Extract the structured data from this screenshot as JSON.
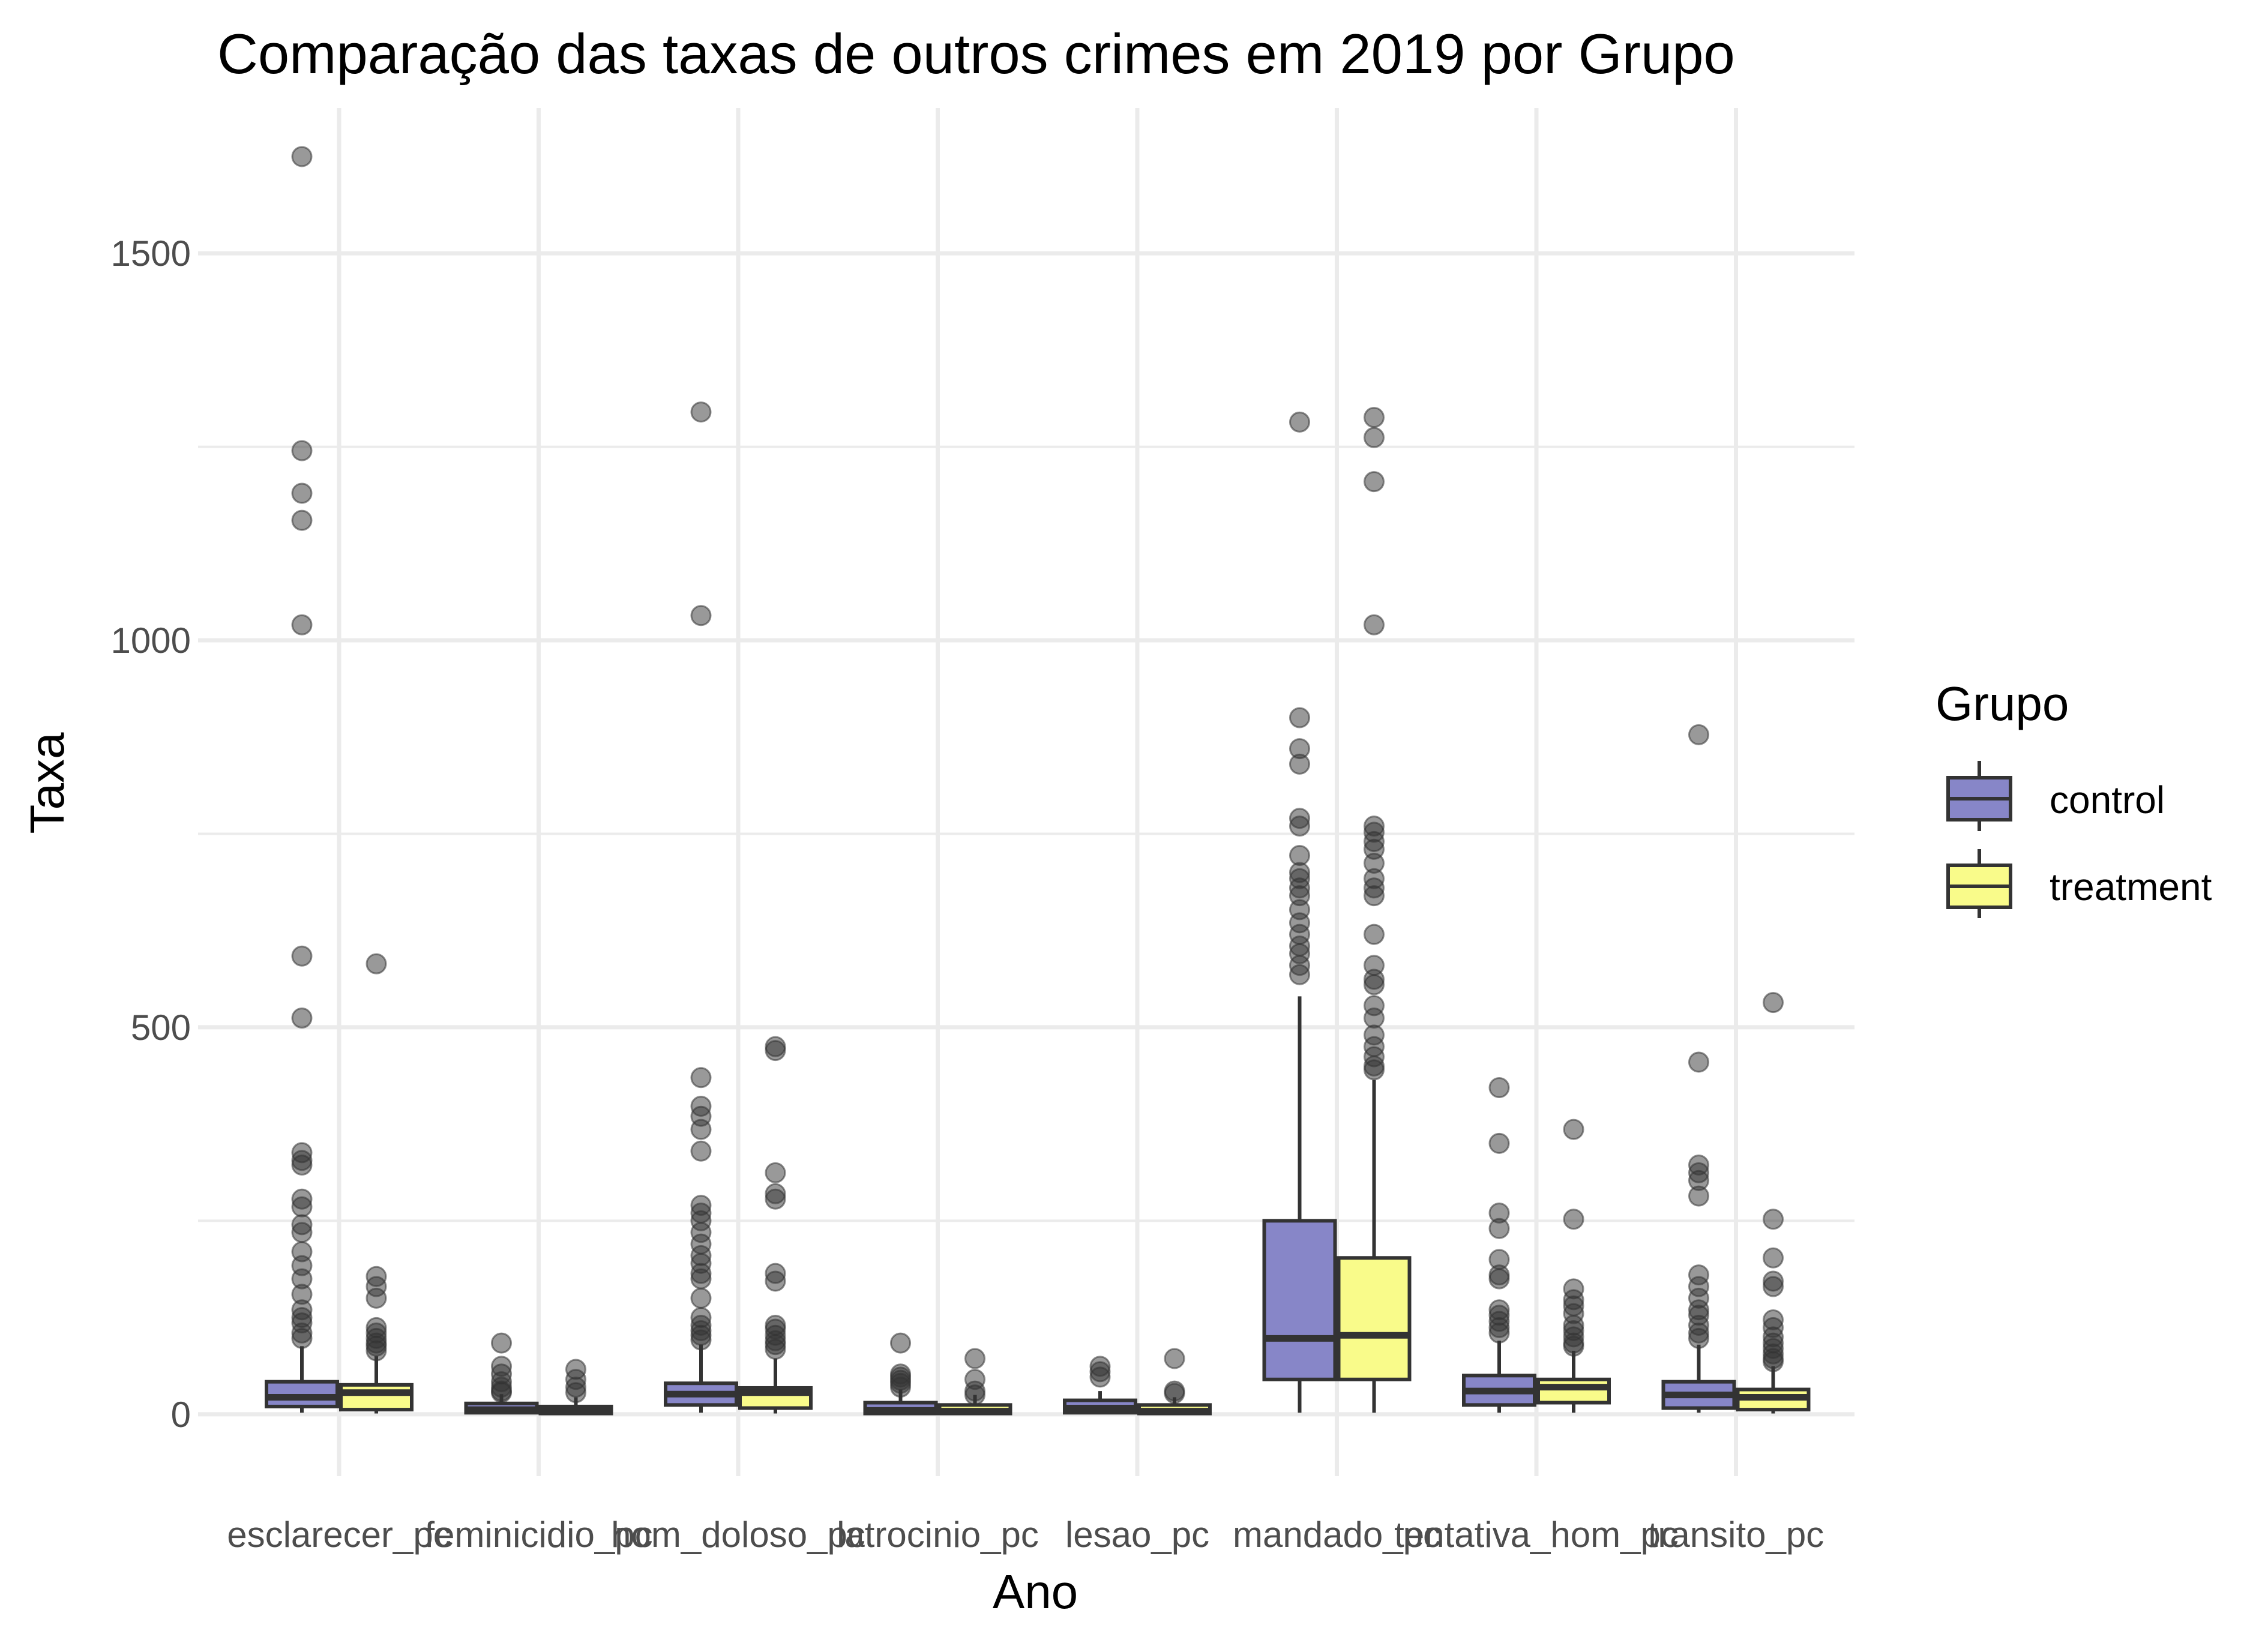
{
  "chart_data": {
    "type": "boxplot",
    "title": "Comparação das taxas de outros crimes em 2019 por Grupo",
    "xlabel": "Ano",
    "ylabel": "Taxa",
    "ylim": [
      -80,
      1680
    ],
    "yticks": [
      0,
      500,
      1000,
      1500
    ],
    "grid": true,
    "legend": {
      "title": "Grupo",
      "position": "right"
    },
    "categories": [
      "esclarecer_pc",
      "feminicidio_pc",
      "hom_doloso_pc",
      "latrocinio_pc",
      "lesao_pc",
      "mandado_pc",
      "tentativa_hom_pc",
      "transito_pc"
    ],
    "series": [
      {
        "name": "control",
        "color": "#8786c8",
        "boxes": [
          {
            "q1": 10,
            "median": 22,
            "q3": 42,
            "lower": 2,
            "upper": 88,
            "outliers": [
              1625,
              1245,
              1190,
              1155,
              1020,
              592,
              512,
              338,
              328,
              322,
              278,
              268,
              245,
              235,
              210,
              192,
              175,
              155,
              135,
              125,
              118,
              105,
              98
            ]
          },
          {
            "q1": 2,
            "median": 6,
            "q3": 14,
            "lower": 0,
            "upper": 26,
            "outliers": [
              92,
              62,
              52,
              42,
              35,
              30,
              28
            ]
          },
          {
            "q1": 12,
            "median": 26,
            "q3": 40,
            "lower": 2,
            "upper": 90,
            "outliers": [
              1295,
              1032,
              435,
              398,
              385,
              368,
              340,
              270,
              260,
              250,
              235,
              220,
              205,
              195,
              182,
              175,
              150,
              125,
              115,
              108,
              102,
              96
            ]
          },
          {
            "q1": 1,
            "median": 5,
            "q3": 15,
            "lower": 0,
            "upper": 32,
            "outliers": [
              92,
              52,
              48,
              44,
              40,
              35
            ]
          },
          {
            "q1": 2,
            "median": 8,
            "q3": 18,
            "lower": 0,
            "upper": 30,
            "outliers": [
              62,
              55,
              48
            ]
          },
          {
            "q1": 45,
            "median": 98,
            "q3": 250,
            "lower": 2,
            "upper": 540,
            "outliers": [
              1282,
              900,
              860,
              840,
              770,
              760,
              722,
              700,
              692,
              680,
              670,
              652,
              635,
              620,
              605,
              595,
              580,
              568
            ]
          },
          {
            "q1": 12,
            "median": 30,
            "q3": 50,
            "lower": 2,
            "upper": 95,
            "outliers": [
              422,
              350,
              260,
              240,
              200,
              180,
              175,
              135,
              128,
              120,
              112,
              105
            ]
          },
          {
            "q1": 8,
            "median": 25,
            "q3": 42,
            "lower": 2,
            "upper": 90,
            "outliers": [
              878,
              455,
              322,
              312,
              302,
              282,
              180,
              165,
              150,
              135,
              128,
              115,
              105,
              98
            ]
          }
        ]
      },
      {
        "name": "treatment",
        "color": "#f9fb8a",
        "boxes": [
          {
            "q1": 6,
            "median": 28,
            "q3": 38,
            "lower": 1,
            "upper": 75,
            "outliers": [
              582,
              178,
              165,
              150,
              112,
              105,
              98,
              92,
              88,
              82
            ]
          },
          {
            "q1": 1,
            "median": 4,
            "q3": 10,
            "lower": 0,
            "upper": 22,
            "outliers": [
              58,
              45,
              35,
              28
            ]
          },
          {
            "q1": 8,
            "median": 28,
            "q3": 34,
            "lower": 1,
            "upper": 72,
            "outliers": [
              475,
              470,
              312,
              285,
              278,
              182,
              172,
              115,
              110,
              102,
              95,
              90,
              84
            ]
          },
          {
            "q1": 1,
            "median": 4,
            "q3": 12,
            "lower": 0,
            "upper": 25,
            "outliers": [
              72,
              45,
              30,
              25
            ]
          },
          {
            "q1": 1,
            "median": 4,
            "q3": 12,
            "lower": 0,
            "upper": 22,
            "outliers": [
              72,
              30,
              27
            ]
          },
          {
            "q1": 45,
            "median": 102,
            "q3": 202,
            "lower": 2,
            "upper": 432,
            "outliers": [
              1288,
              1262,
              1205,
              1020,
              760,
              752,
              740,
              730,
              712,
              692,
              680,
              670,
              620,
              580,
              562,
              555,
              528,
              512,
              490,
              475,
              462,
              450,
              445
            ]
          },
          {
            "q1": 15,
            "median": 35,
            "q3": 45,
            "lower": 2,
            "upper": 82,
            "outliers": [
              368,
              252,
              162,
              148,
              140,
              130,
              115,
              108,
              100,
              92,
              88
            ]
          },
          {
            "q1": 6,
            "median": 22,
            "q3": 32,
            "lower": 1,
            "upper": 62,
            "outliers": [
              532,
              252,
              202,
              172,
              165,
              122,
              112,
              100,
              92,
              85,
              78,
              72,
              68
            ]
          }
        ]
      }
    ]
  }
}
